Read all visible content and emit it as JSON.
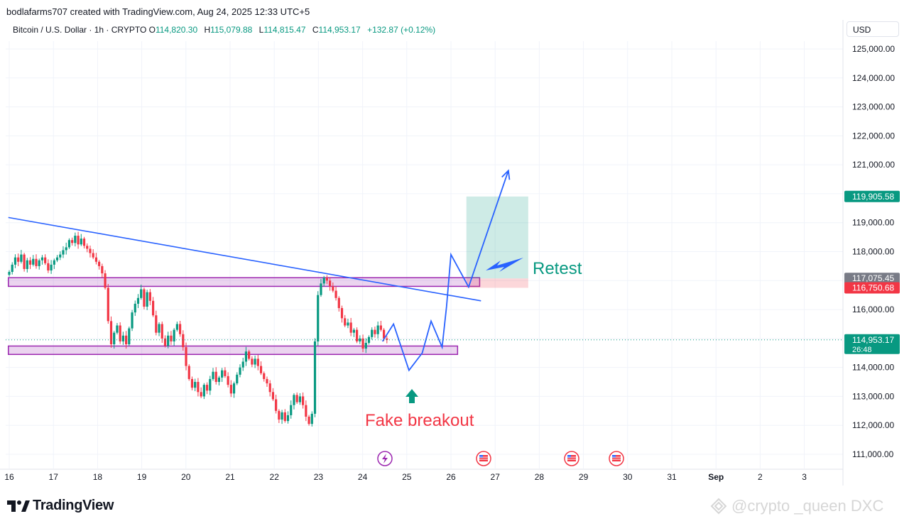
{
  "credit": "bodlafarms707 created with TradingView.com, Aug 24, 2025 12:33 UTC+5",
  "legend": {
    "symbol": "Bitcoin / U.S. Dollar · 1h · CRYPTO",
    "open_key": "O",
    "open": "114,820.30",
    "high_key": "H",
    "high": "115,079.88",
    "low_key": "L",
    "low": "114,815.47",
    "close_key": "C",
    "close": "114,953.17",
    "change": "+132.87 (+0.12%)"
  },
  "currency": "USD",
  "logo": "TradingView",
  "watermark": "@crypto _queen DXC",
  "colors": {
    "up": "#089981",
    "down": "#f23645",
    "trend": "#2962ff",
    "zone": "#9c27b0",
    "target": "#089981",
    "stop": "#f23645"
  },
  "chart_data": {
    "type": "candlestick",
    "yaxis": {
      "min": 110600,
      "max": 125500,
      "ticks": [
        111000,
        112000,
        113000,
        114000,
        115000,
        116000,
        117000,
        118000,
        119000,
        120000,
        121000,
        122000,
        123000,
        124000,
        125000
      ],
      "tick_labels": [
        "111,000.00",
        "112,000.00",
        "113,000.00",
        "114,000.00",
        "",
        "116,000.00",
        "",
        "118,000.00",
        "119,000.00",
        "",
        "121,000.00",
        "122,000.00",
        "123,000.00",
        "124,000.00",
        "125,000.00"
      ]
    },
    "xaxis": {
      "labels": [
        "16",
        "17",
        "18",
        "19",
        "20",
        "21",
        "22",
        "23",
        "24",
        "25",
        "26",
        "27",
        "28",
        "29",
        "30",
        "31",
        "Sep",
        "2",
        "3"
      ],
      "bold_label": "Sep"
    },
    "price_tags": [
      {
        "value": 119905.58,
        "label": "119,905.58",
        "color": "#089981"
      },
      {
        "value": 117075.45,
        "label": "117,075.45",
        "color": "#787b86"
      },
      {
        "value": 116750.68,
        "label": "116,750.68",
        "color": "#f23645"
      },
      {
        "value": 114953.17,
        "label": "114,953.17",
        "sublabel": "26:48",
        "color": "#089981"
      }
    ],
    "last_price": 114953.17,
    "zones": [
      {
        "from_day": 15.98,
        "to_day": 26.65,
        "low": 116800,
        "high": 117100
      },
      {
        "from_day": 15.98,
        "to_day": 26.15,
        "low": 114450,
        "high": 114740
      }
    ],
    "trendline": {
      "start": [
        15.98,
        119180
      ],
      "end": [
        26.68,
        116300
      ]
    },
    "projection": [
      [
        26.4,
        116780
      ],
      [
        26.0,
        117900
      ],
      [
        25.9,
        116100
      ],
      [
        25.8,
        114700
      ],
      [
        25.55,
        115600
      ],
      [
        25.35,
        114500
      ],
      [
        25.05,
        113900
      ],
      [
        24.7,
        115500
      ],
      [
        24.45,
        114900
      ]
    ],
    "projection_path": [
      [
        24.45,
        114900
      ],
      [
        24.7,
        115500
      ],
      [
        25.05,
        113900
      ],
      [
        25.35,
        114500
      ],
      [
        25.55,
        115600
      ],
      [
        25.8,
        114700
      ],
      [
        25.9,
        116100
      ],
      [
        26.0,
        117900
      ],
      [
        26.4,
        116780
      ],
      [
        27.3,
        120800
      ]
    ],
    "target_box": {
      "from_day": 26.35,
      "to_day": 27.75,
      "entry_high": 117075,
      "entry_low": 116750,
      "target": 119905
    },
    "annotations": [
      {
        "text": "Retest",
        "day": 26.8,
        "value": 117230
      },
      {
        "text": "Fake breakout",
        "day": 24.0,
        "value": 112700
      }
    ],
    "candle_closes": [
      117300,
      117550,
      117800,
      117650,
      117900,
      117400,
      117700,
      117550,
      117750,
      117500,
      117700,
      117800,
      117600,
      117350,
      117550,
      117700,
      117800,
      117900,
      118050,
      118150,
      118400,
      118300,
      118550,
      118250,
      118450,
      118200,
      118100,
      117950,
      117800,
      117650,
      117500,
      117250,
      116750,
      115600,
      114800,
      115200,
      115450,
      114900,
      115100,
      114800,
      115350,
      115900,
      116200,
      116400,
      116700,
      116100,
      116600,
      116300,
      115800,
      115200,
      115500,
      115000,
      114750,
      115100,
      114900,
      115300,
      115500,
      115150,
      114700,
      114050,
      113600,
      113300,
      113500,
      113150,
      113000,
      113400,
      113200,
      113600,
      113850,
      113500,
      113650,
      113900,
      113700,
      113400,
      113100,
      113450,
      113750,
      114000,
      114200,
      114550,
      114300,
      114100,
      114300,
      114050,
      113800,
      113600,
      113450,
      113150,
      112900,
      112500,
      112200,
      112450,
      112150,
      112350,
      112700,
      113050,
      112800,
      113000,
      112700,
      112300,
      112050,
      112400,
      114900,
      116500,
      116900,
      117100,
      117000,
      116800,
      116650,
      116400,
      116050,
      115700,
      115450,
      115550,
      115200,
      115300,
      114900,
      115000,
      114650,
      114850,
      115050,
      115300,
      115150,
      115450,
      115300,
      115000,
      114953
    ]
  }
}
